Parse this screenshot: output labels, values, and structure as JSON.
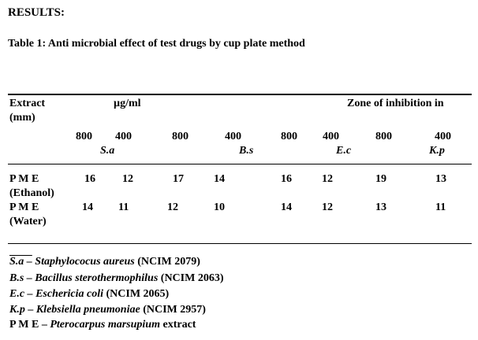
{
  "heading": "RESULTS:",
  "table_title": "Table 1: Anti microbial effect of test drugs by cup plate method",
  "header": {
    "extract": "Extract",
    "mm": "(mm)",
    "unit": "µg/ml",
    "zone": "Zone of inhibition in"
  },
  "concentrations": [
    "800",
    "400",
    "800",
    "400",
    "800",
    "400",
    "800",
    "400"
  ],
  "organisms": [
    "S.a",
    "B.s",
    "E.c",
    "K.p"
  ],
  "rows": [
    {
      "name_line1": "P M E",
      "name_line2": "(Ethanol)",
      "values": [
        "16",
        "12",
        "17",
        "14",
        "16",
        "12",
        "19",
        "13"
      ]
    },
    {
      "name_line1": "P M E",
      "name_line2": "(Water)",
      "values": [
        "14",
        "11",
        "12",
        "10",
        "14",
        "12",
        "13",
        "11"
      ]
    }
  ],
  "legend": [
    {
      "abbr": "S.a –",
      "name": "Staphylococus aureus",
      "ref": "(NCIM 2079)"
    },
    {
      "abbr": "B.s –",
      "name": "Bacillus sterothermophilus",
      "ref": "(NCIM 2063)"
    },
    {
      "abbr": "E.c –",
      "name": "Eschericia coli",
      "ref": "(NCIM 2065)"
    },
    {
      "abbr": "K.p –",
      "name": "Klebsiella pneumoniae",
      "ref": "(NCIM 2957)"
    },
    {
      "abbr": "P M E –",
      "name": "Pterocarpus marsupium",
      "ref": "extract"
    }
  ]
}
